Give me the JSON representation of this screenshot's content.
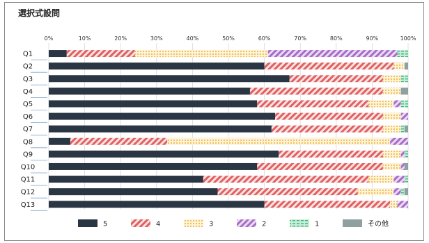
{
  "chart_data": {
    "type": "bar",
    "orientation": "horizontal",
    "stacked": "percent",
    "title": "選択式設問",
    "xlim": [
      0,
      100
    ],
    "x_ticks": [
      "0%",
      "10%",
      "20%",
      "30%",
      "40%",
      "50%",
      "60%",
      "70%",
      "80%",
      "90%",
      "100%"
    ],
    "categories": [
      "Q1",
      "Q2",
      "Q3",
      "Q4",
      "Q5",
      "Q6",
      "Q7",
      "Q8",
      "Q9",
      "Q10",
      "Q11",
      "Q12",
      "Q13"
    ],
    "legend_position": "bottom",
    "series": [
      {
        "name": "5",
        "color": "#2b3645",
        "pattern": "solid",
        "values": [
          5,
          60,
          67,
          56,
          58,
          63,
          62,
          6,
          64,
          58,
          43,
          47,
          60
        ]
      },
      {
        "name": "4",
        "color": "#e06060",
        "pattern": "diagonal",
        "values": [
          19,
          36,
          26,
          37,
          31,
          30,
          31,
          27,
          29,
          35,
          46,
          39,
          35
        ]
      },
      {
        "name": "3",
        "color": "#f0b030",
        "pattern": "dotted",
        "values": [
          37,
          3,
          5,
          5,
          7,
          5,
          5,
          62,
          5,
          5,
          7,
          10,
          2
        ]
      },
      {
        "name": "2",
        "color": "#a86cc8",
        "pattern": "diagonal",
        "values": [
          36,
          0,
          0,
          0,
          2,
          2,
          0,
          5,
          1,
          1,
          3,
          2,
          3
        ]
      },
      {
        "name": "1",
        "color": "#3fb87a",
        "pattern": "dashed",
        "values": [
          3,
          0,
          2,
          0,
          2,
          0,
          1,
          0,
          1,
          0,
          1,
          1,
          0
        ]
      },
      {
        "name": "その他",
        "color": "#8fa0a0",
        "pattern": "solid",
        "values": [
          0,
          1,
          0,
          2,
          0,
          0,
          1,
          0,
          0,
          1,
          0,
          1,
          0
        ]
      }
    ]
  }
}
